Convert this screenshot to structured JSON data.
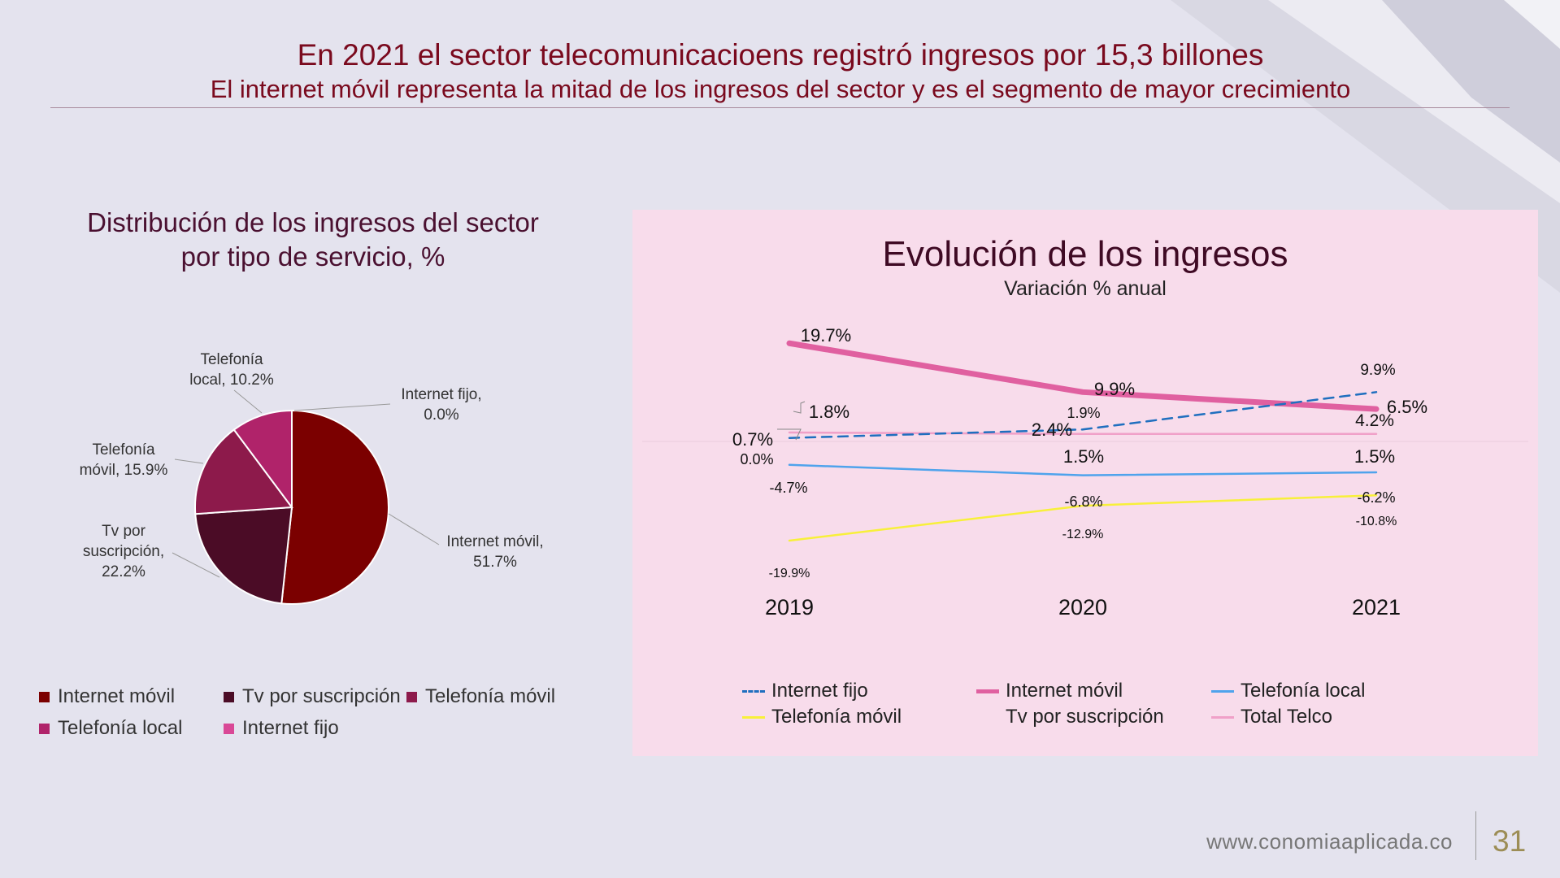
{
  "header": {
    "title": "En 2021 el sector telecomunicacioens registró ingresos por 15,3 billones",
    "subtitle": "El internet móvil representa la mitad de los ingresos del sector y es el segmento de mayor crecimiento"
  },
  "footer": {
    "url": "www.conomiaaplicada.co",
    "page": "31"
  },
  "chart_data": [
    {
      "type": "pie",
      "title": "Distribución de los ingresos del sector por tipo de servicio, %",
      "title_lines": [
        "Distribución de los ingresos del sector",
        "por tipo de servicio, %"
      ],
      "slices": [
        {
          "name": "Internet móvil",
          "value": 51.7,
          "label_lines": [
            "Internet móvil,",
            "51.7%"
          ],
          "color": "#7b0000"
        },
        {
          "name": "Tv por suscripción",
          "value": 22.2,
          "label_lines": [
            "Tv por",
            "suscripción,",
            "22.2%"
          ],
          "color": "#4b0c26"
        },
        {
          "name": "Telefonía móvil",
          "value": 15.9,
          "label_lines": [
            "Telefonía",
            "móvil, 15.9%"
          ],
          "color": "#8d1a4b"
        },
        {
          "name": "Telefonía local",
          "value": 10.2,
          "label_lines": [
            "Telefonía",
            "local, 10.2%"
          ],
          "color": "#b0236a"
        },
        {
          "name": "Internet fijo",
          "value": 0.0,
          "label_lines": [
            "Internet fijo,",
            "0.0%"
          ],
          "color": "#d94896"
        }
      ],
      "legend": [
        "Internet móvil",
        "Tv por suscripción",
        "Telefonía móvil",
        "Telefonía local",
        "Internet fijo"
      ]
    },
    {
      "type": "line",
      "title": "Evolución de los ingresos",
      "subtitle": "Variación % anual",
      "x": [
        "2019",
        "2020",
        "2021"
      ],
      "series": [
        {
          "name": "Internet fijo",
          "values": [
            0.7,
            2.4,
            9.9
          ],
          "labels": [
            "0.7%",
            "2.4%",
            "9.9%"
          ],
          "color": "#1f6fbf",
          "style": "dashed"
        },
        {
          "name": "Internet móvil",
          "values": [
            19.7,
            9.9,
            6.5
          ],
          "labels": [
            "19.7%",
            "9.9%",
            "6.5%"
          ],
          "color": "#e060a0",
          "style": "thick"
        },
        {
          "name": "Telefonía local",
          "values": [
            -4.7,
            -6.8,
            -6.2
          ],
          "labels": [
            "-4.7%",
            "-6.8%",
            "-6.2%"
          ],
          "color": "#4fa3ec",
          "style": "solid"
        },
        {
          "name": "Telefonía móvil",
          "values": [
            -19.9,
            -12.9,
            -10.8
          ],
          "labels": [
            "-19.9%",
            "-12.9%",
            "-10.8%"
          ],
          "color": "#f8f03a",
          "style": "solid"
        },
        {
          "name": "Tv por suscripción",
          "values": [
            0.0,
            1.9,
            4.2
          ],
          "labels": [
            "0.0%",
            "1.9%",
            "4.2%"
          ],
          "color": "#f8dceb",
          "style": "hidden"
        },
        {
          "name": "Total Telco",
          "values": [
            1.8,
            1.5,
            1.5
          ],
          "labels": [
            "1.8%",
            "1.5%",
            "1.5%"
          ],
          "color": "#f0a0c8",
          "style": "solid"
        }
      ],
      "legend": [
        "Internet fijo",
        "Internet móvil",
        "Telefonía local",
        "Telefonía móvil",
        "Tv por suscripción",
        "Total Telco"
      ]
    }
  ]
}
